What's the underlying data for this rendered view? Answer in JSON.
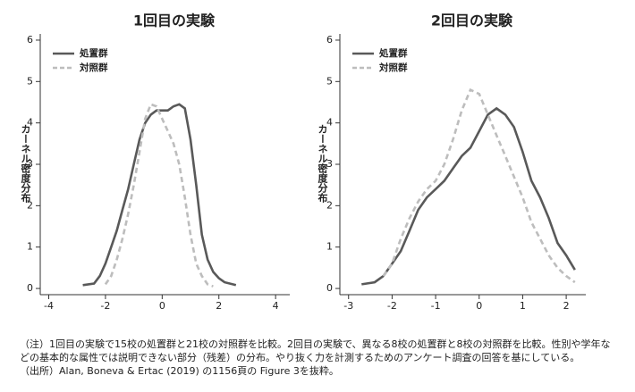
{
  "chart_data": [
    {
      "type": "line",
      "title": "1回目の実験",
      "y_label": "カーネル密度分布",
      "legend_position": "upper-left",
      "xlim": [
        -4.3,
        4.5
      ],
      "ylim": [
        -0.15,
        6.15
      ],
      "xticks": [
        -4,
        -2,
        0,
        2,
        4
      ],
      "yticks": [
        0,
        1,
        2,
        3,
        4,
        5,
        6
      ],
      "grid": false,
      "series": [
        {
          "name": "処置群",
          "color": "#595959",
          "dash": false,
          "x": [
            -2.8,
            -2.4,
            -2.2,
            -2.0,
            -1.8,
            -1.6,
            -1.4,
            -1.2,
            -1.0,
            -0.8,
            -0.6,
            -0.4,
            -0.2,
            0,
            0.2,
            0.4,
            0.6,
            0.8,
            1.0,
            1.2,
            1.4,
            1.6,
            1.8,
            2.0,
            2.2,
            2.6
          ],
          "values": [
            0.08,
            0.12,
            0.3,
            0.6,
            1.0,
            1.4,
            1.9,
            2.4,
            3.0,
            3.6,
            4.0,
            4.2,
            4.3,
            4.3,
            4.3,
            4.4,
            4.45,
            4.35,
            3.6,
            2.5,
            1.3,
            0.7,
            0.4,
            0.25,
            0.15,
            0.08
          ]
        },
        {
          "name": "対照群",
          "color": "#bdbdbd",
          "dash": true,
          "x": [
            -2.0,
            -1.8,
            -1.6,
            -1.4,
            -1.2,
            -1.0,
            -0.8,
            -0.6,
            -0.4,
            -0.2,
            0,
            0.2,
            0.4,
            0.6,
            0.8,
            1.0,
            1.2,
            1.4,
            1.6,
            1.8
          ],
          "values": [
            0.1,
            0.3,
            0.7,
            1.2,
            1.8,
            2.5,
            3.3,
            4.1,
            4.45,
            4.4,
            4.1,
            3.8,
            3.5,
            3.0,
            2.2,
            1.3,
            0.6,
            0.3,
            0.1,
            0.05
          ]
        }
      ]
    },
    {
      "type": "line",
      "title": "2回目の実験",
      "y_label": "カーネル密度分布",
      "legend_position": "upper-left",
      "xlim": [
        -3.2,
        2.45
      ],
      "ylim": [
        -0.15,
        6.15
      ],
      "xticks": [
        -3,
        -2,
        -1,
        0,
        1,
        2
      ],
      "yticks": [
        0,
        1,
        2,
        3,
        4,
        5,
        6
      ],
      "grid": false,
      "series": [
        {
          "name": "処置群",
          "color": "#595959",
          "dash": false,
          "x": [
            -2.7,
            -2.4,
            -2.2,
            -2.0,
            -1.8,
            -1.6,
            -1.4,
            -1.2,
            -1.0,
            -0.8,
            -0.6,
            -0.4,
            -0.2,
            0,
            0.2,
            0.4,
            0.6,
            0.8,
            1.0,
            1.2,
            1.4,
            1.6,
            1.8,
            2.0,
            2.2
          ],
          "values": [
            0.1,
            0.15,
            0.3,
            0.6,
            0.9,
            1.4,
            1.9,
            2.2,
            2.4,
            2.6,
            2.9,
            3.2,
            3.4,
            3.8,
            4.2,
            4.35,
            4.2,
            3.9,
            3.3,
            2.6,
            2.2,
            1.7,
            1.1,
            0.8,
            0.45
          ]
        },
        {
          "name": "対照群",
          "color": "#bdbdbd",
          "dash": true,
          "x": [
            -2.2,
            -2.0,
            -1.8,
            -1.6,
            -1.4,
            -1.2,
            -1.0,
            -0.8,
            -0.6,
            -0.4,
            -0.2,
            0,
            0.2,
            0.4,
            0.6,
            0.8,
            1.0,
            1.2,
            1.4,
            1.6,
            1.8,
            2.0,
            2.2
          ],
          "values": [
            0.3,
            0.6,
            1.2,
            1.7,
            2.1,
            2.4,
            2.6,
            3.0,
            3.6,
            4.3,
            4.8,
            4.7,
            4.2,
            3.7,
            3.2,
            2.7,
            2.2,
            1.6,
            1.2,
            0.8,
            0.5,
            0.3,
            0.15
          ]
        }
      ]
    }
  ],
  "notes": [
    "（注）1回目の実験で15校の処置群と21校の対照群を比較。2回目の実験で、異なる8校の処置群と8校の対照群を比較。性別や学年な",
    "どの基本的な属性では説明できない部分（残差）の分布。やり抜く力を計測するためのアンケート調査の回答を基にしている。",
    "（出所）Alan, Boneva & Ertac (2019) の1156頁の Figure 3を抜粋。"
  ]
}
